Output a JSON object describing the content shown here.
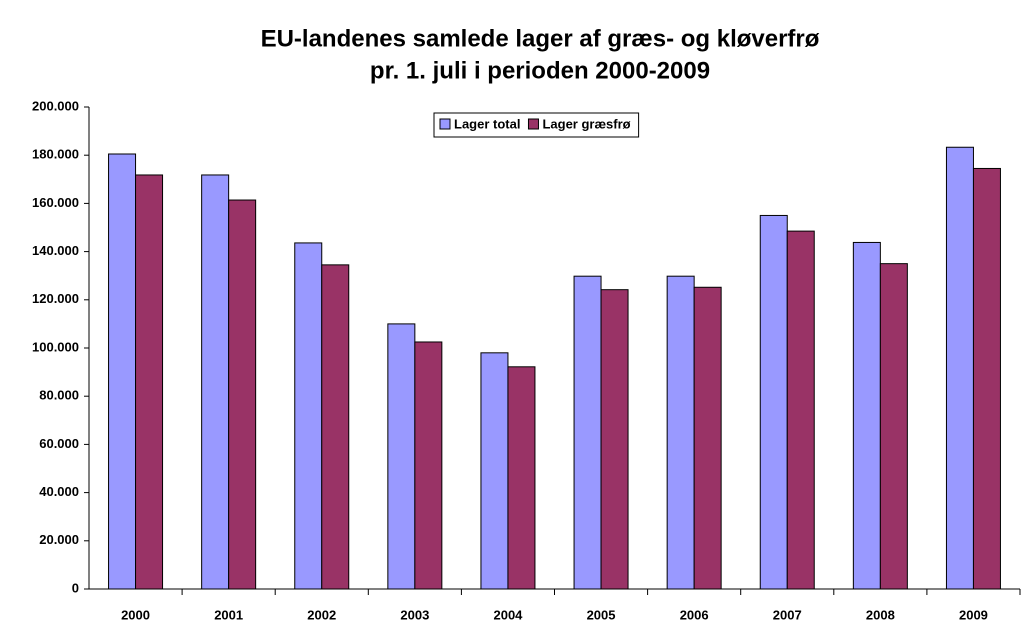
{
  "chart_data": {
    "type": "bar",
    "title": "EU-landenes samlede lager af græs- og kløverfrø",
    "subtitle": "pr. 1. juli i perioden 2000-2009",
    "categories": [
      "2000",
      "2001",
      "2002",
      "2003",
      "2004",
      "2005",
      "2006",
      "2007",
      "2008",
      "2009"
    ],
    "series": [
      {
        "name": "Lager total",
        "color": "#9999ff",
        "values": [
          180500,
          171800,
          143600,
          110000,
          98000,
          129800,
          129800,
          155000,
          143800,
          183300
        ]
      },
      {
        "name": "Lager græsfrø",
        "color": "#993366",
        "values": [
          171800,
          161400,
          134500,
          102500,
          92200,
          124200,
          125200,
          148500,
          135000,
          174500
        ]
      }
    ],
    "ylim": [
      0,
      200000
    ],
    "yticks": [
      0,
      {
        "value": 20000,
        "label": "20.000"
      },
      {
        "value": 40000,
        "label": "40.000"
      },
      {
        "value": 60000,
        "label": "60.000"
      },
      {
        "value": 80000,
        "label": "80.000"
      },
      {
        "value": 100000,
        "label": "100.000"
      },
      {
        "value": 120000,
        "label": "120.000"
      },
      {
        "value": 140000,
        "label": "140.000"
      },
      {
        "value": 160000,
        "label": "160.000"
      },
      {
        "value": 180000,
        "label": "180.000"
      },
      {
        "value": 200000,
        "label": "200.000"
      }
    ],
    "grid": false,
    "legend": "top"
  }
}
